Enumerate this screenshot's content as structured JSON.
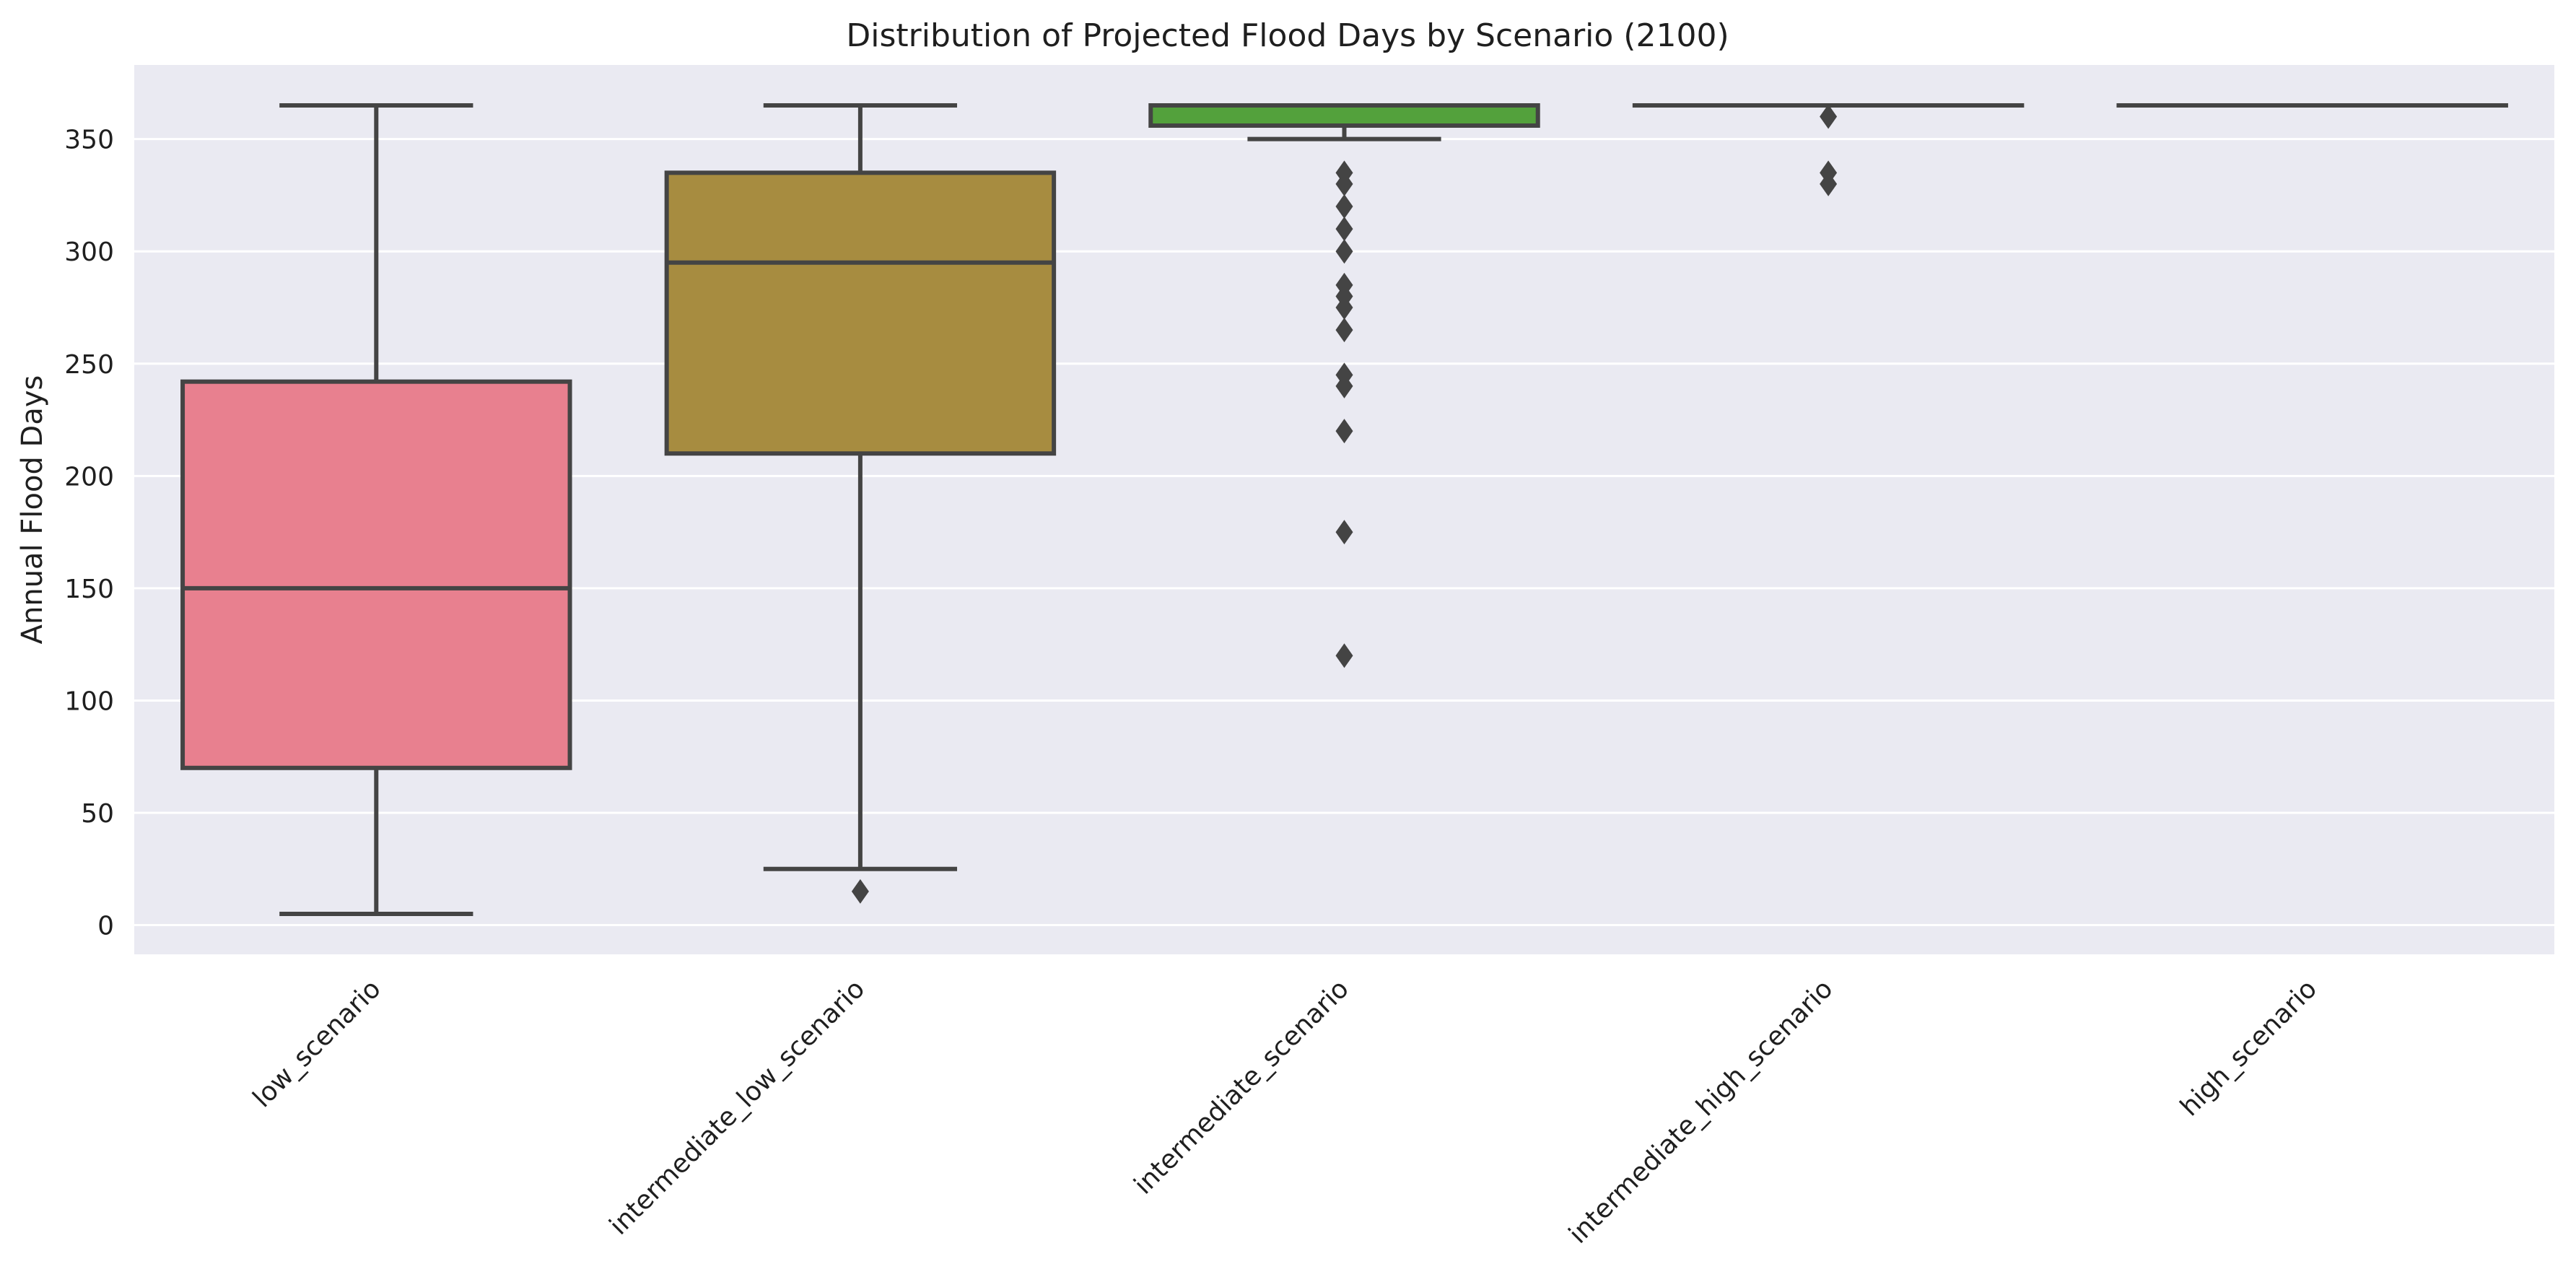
{
  "chart_data": {
    "type": "boxplot",
    "title": "Distribution of Projected Flood Days by Scenario (2100)",
    "xlabel": "",
    "ylabel": "Annual Flood Days",
    "ylim": [
      -13,
      383
    ],
    "yticks": [
      0,
      50,
      100,
      150,
      200,
      250,
      300,
      350
    ],
    "grid": true,
    "background": "#EAEAF2",
    "line_color": "#444444",
    "categories": [
      "low_scenario",
      "intermediate_low_scenario",
      "intermediate_scenario",
      "intermediate_high_scenario",
      "high_scenario"
    ],
    "boxes": [
      {
        "category": "low_scenario",
        "whisker_low": 5,
        "q1": 70,
        "median": 150,
        "q3": 242,
        "whisker_high": 365,
        "outliers": [],
        "color": "#E8808F"
      },
      {
        "category": "intermediate_low_scenario",
        "whisker_low": 25,
        "q1": 210,
        "median": 295,
        "q3": 335,
        "whisker_high": 365,
        "outliers": [
          15
        ],
        "color": "#A78C40"
      },
      {
        "category": "intermediate_scenario",
        "whisker_low": 350,
        "q1": 356,
        "median": 365,
        "q3": 365,
        "whisker_high": 365,
        "outliers": [
          335,
          330,
          320,
          310,
          300,
          285,
          280,
          275,
          265,
          245,
          240,
          220,
          175,
          120
        ],
        "color": "#53A13C"
      },
      {
        "category": "intermediate_high_scenario",
        "whisker_low": 365,
        "q1": 365,
        "median": 365,
        "q3": 365,
        "whisker_high": 365,
        "outliers": [
          360,
          335,
          330
        ],
        "color": "#4E9F8A"
      },
      {
        "category": "high_scenario",
        "whisker_low": 365,
        "q1": 365,
        "median": 365,
        "q3": 365,
        "whisker_high": 365,
        "outliers": [],
        "color": "#5A8FD1"
      }
    ]
  }
}
